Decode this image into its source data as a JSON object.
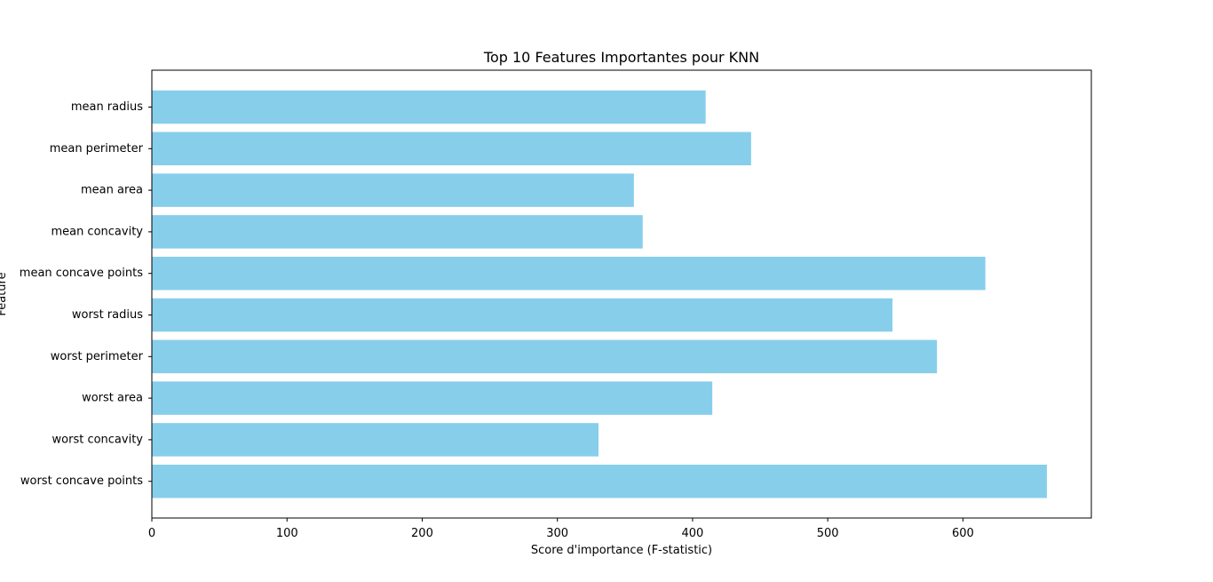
{
  "chart_data": {
    "type": "bar",
    "orientation": "horizontal",
    "title": "Top 10 Features Importantes pour KNN",
    "xlabel": "Score d'importance (F-statistic)",
    "ylabel": "Feature",
    "categories": [
      "mean radius",
      "mean perimeter",
      "mean area",
      "mean concavity",
      "mean concave points",
      "worst radius",
      "worst perimeter",
      "worst area",
      "worst concavity",
      "worst concave points"
    ],
    "values": [
      409.7,
      443.3,
      356.6,
      363.1,
      616.6,
      547.9,
      580.8,
      414.6,
      330.4,
      662.1
    ],
    "xlim": [
      0,
      695
    ],
    "xticks": [
      0,
      100,
      200,
      300,
      400,
      500,
      600
    ],
    "grid": false,
    "legend": false,
    "colors": {
      "bar": "#87ceeb",
      "axes": "#000000",
      "text": "#000000"
    }
  }
}
